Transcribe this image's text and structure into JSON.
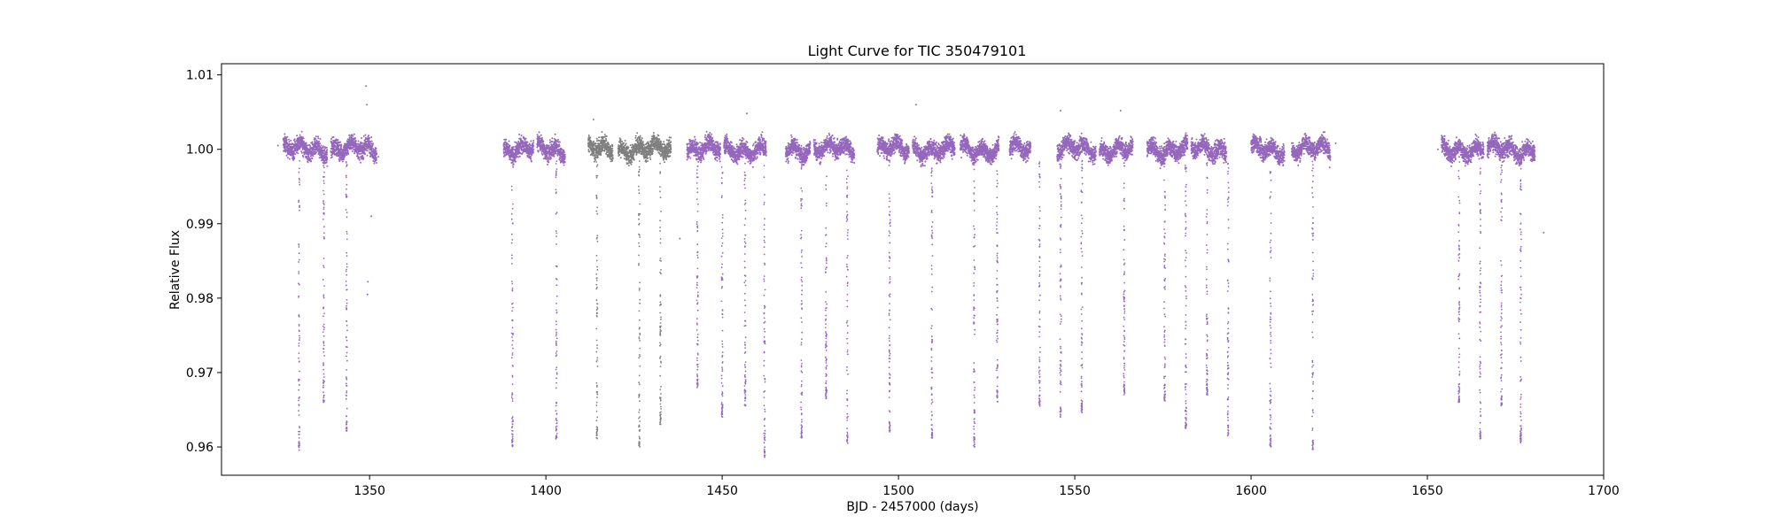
{
  "chart_data": {
    "type": "scatter",
    "title": "Light Curve for TIC 350479101",
    "xlabel": "BJD - 2457000 (days)",
    "ylabel": "Relative Flux",
    "xlim": [
      1308,
      1700
    ],
    "ylim": [
      0.9562,
      1.0115
    ],
    "xticks": [
      1350,
      1400,
      1450,
      1500,
      1550,
      1600,
      1650,
      1700
    ],
    "yticks": [
      0.96,
      0.97,
      0.98,
      0.99,
      1.0,
      1.01
    ],
    "ytick_labels": [
      "0.96",
      "0.97",
      "0.98",
      "0.99",
      "1.00",
      "1.01"
    ],
    "grid": false,
    "colors": {
      "primary": "#9467bd",
      "secondary": "#7f7f7f"
    },
    "series": [
      {
        "color": "primary",
        "baseline_noise": 0.0012,
        "segments": [
          [
            1325.5,
            1338
          ],
          [
            1339,
            1352
          ],
          [
            1388,
            1396.5
          ],
          [
            1397.5,
            1405.5
          ],
          [
            1440,
            1449.5
          ],
          [
            1450.5,
            1462.5
          ],
          [
            1468,
            1475
          ],
          [
            1476,
            1487.5
          ],
          [
            1494,
            1503
          ],
          [
            1504,
            1516
          ],
          [
            1517.5,
            1528.5
          ],
          [
            1531.5,
            1537.5
          ],
          [
            1545,
            1556
          ],
          [
            1557,
            1566.5
          ],
          [
            1570.5,
            1582
          ],
          [
            1583,
            1593
          ],
          [
            1600,
            1609.5
          ],
          [
            1611.5,
            1622.5
          ],
          [
            1654,
            1666
          ],
          [
            1667,
            1680.5
          ]
        ],
        "dips": [
          {
            "x": 1330.0,
            "depth": 0.9595
          },
          {
            "x": 1337.0,
            "depth": 0.966
          },
          {
            "x": 1343.5,
            "depth": 0.962
          },
          {
            "x": 1390.5,
            "depth": 0.96
          },
          {
            "x": 1403.0,
            "depth": 0.961
          },
          {
            "x": 1443.0,
            "depth": 0.968
          },
          {
            "x": 1450.0,
            "depth": 0.964
          },
          {
            "x": 1456.5,
            "depth": 0.9655
          },
          {
            "x": 1462.0,
            "depth": 0.9585
          },
          {
            "x": 1472.5,
            "depth": 0.961
          },
          {
            "x": 1479.5,
            "depth": 0.9665
          },
          {
            "x": 1485.5,
            "depth": 0.9605
          },
          {
            "x": 1497.5,
            "depth": 0.962
          },
          {
            "x": 1509.5,
            "depth": 0.961
          },
          {
            "x": 1521.5,
            "depth": 0.96
          },
          {
            "x": 1528.0,
            "depth": 0.966
          },
          {
            "x": 1540.0,
            "depth": 0.9655
          },
          {
            "x": 1546.0,
            "depth": 0.964
          },
          {
            "x": 1552.0,
            "depth": 0.9645
          },
          {
            "x": 1564.0,
            "depth": 0.967
          },
          {
            "x": 1575.5,
            "depth": 0.966
          },
          {
            "x": 1581.5,
            "depth": 0.9625
          },
          {
            "x": 1587.5,
            "depth": 0.967
          },
          {
            "x": 1593.5,
            "depth": 0.9615
          },
          {
            "x": 1605.5,
            "depth": 0.96
          },
          {
            "x": 1617.5,
            "depth": 0.9595
          },
          {
            "x": 1659.0,
            "depth": 0.966
          },
          {
            "x": 1665.0,
            "depth": 0.961
          },
          {
            "x": 1671.0,
            "depth": 0.9655
          },
          {
            "x": 1676.5,
            "depth": 0.9605
          }
        ],
        "outliers": [
          [
            1324,
            1.0005
          ],
          [
            1349.0,
            1.0085
          ],
          [
            1349.2,
            1.006
          ],
          [
            1349.5,
            0.9822
          ],
          [
            1349.4,
            0.9805
          ],
          [
            1350.5,
            0.991
          ],
          [
            1352.5,
            0.999
          ],
          [
            1546,
            1.0052
          ],
          [
            1563,
            1.0052
          ],
          [
            1505,
            1.006
          ],
          [
            1457,
            1.0048
          ],
          [
            1683,
            0.9888
          ],
          [
            1624,
            1.0008
          ],
          [
            1653,
            1.0
          ]
        ]
      },
      {
        "color": "secondary",
        "baseline_noise": 0.0012,
        "segments": [
          [
            1412,
            1419
          ],
          [
            1420.5,
            1435.5
          ]
        ],
        "dips": [
          {
            "x": 1414.5,
            "depth": 0.961
          },
          {
            "x": 1426.5,
            "depth": 0.96
          },
          {
            "x": 1432.5,
            "depth": 0.963
          }
        ],
        "outliers": [
          [
            1413.5,
            1.004
          ],
          [
            1438,
            0.988
          ]
        ]
      }
    ]
  }
}
